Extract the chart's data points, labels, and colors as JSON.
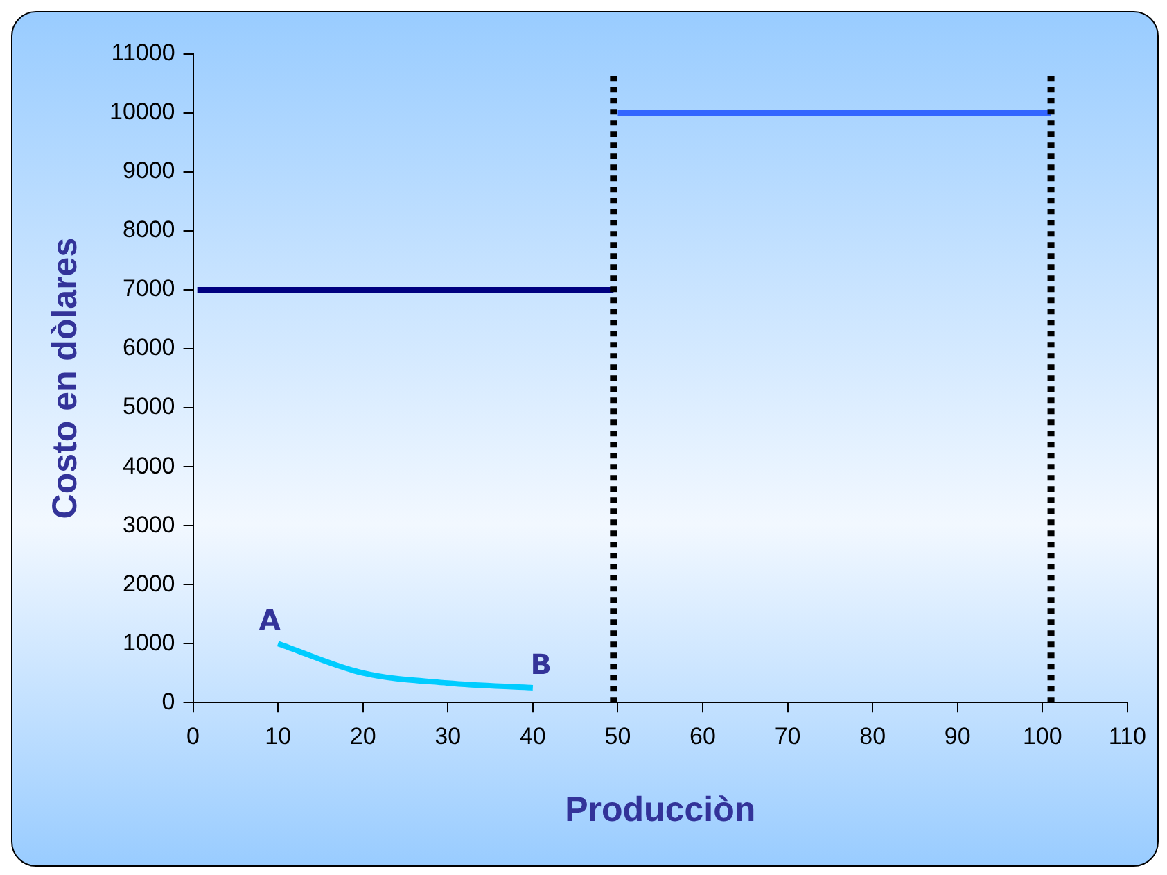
{
  "chart_data": {
    "type": "line",
    "xlabel": "Producciòn",
    "ylabel": "Costo en dòlares",
    "xlim": [
      0,
      110
    ],
    "xticks": [
      0,
      10,
      20,
      30,
      40,
      50,
      60,
      70,
      80,
      90,
      100,
      110
    ],
    "ylim": [
      0,
      11000
    ],
    "yticks": [
      0,
      1000,
      2000,
      3000,
      4000,
      5000,
      6000,
      7000,
      8000,
      9000,
      10000,
      11000
    ],
    "grid": false,
    "legend": false,
    "marker": "none",
    "series": [
      {
        "color": "#000080",
        "x": [
          0.5,
          49.5
        ],
        "values": [
          7000,
          7000
        ]
      },
      {
        "color": "#3366ff",
        "x": [
          50,
          101
        ],
        "values": [
          10000,
          10000
        ]
      },
      {
        "color": "#00ccff",
        "x": [
          10,
          20,
          30,
          40
        ],
        "values": [
          1000,
          500,
          330,
          250
        ]
      }
    ],
    "ref_lines": [
      {
        "axis": "x",
        "value": 49.5,
        "color": "#000000",
        "line_style": "dotted"
      },
      {
        "axis": "x",
        "value": 101,
        "color": "#000000",
        "line_style": "dotted"
      }
    ],
    "annotations": [
      {
        "text": "A",
        "x": 10,
        "y": 1000
      },
      {
        "text": "B",
        "x": 40,
        "y": 250
      }
    ]
  }
}
